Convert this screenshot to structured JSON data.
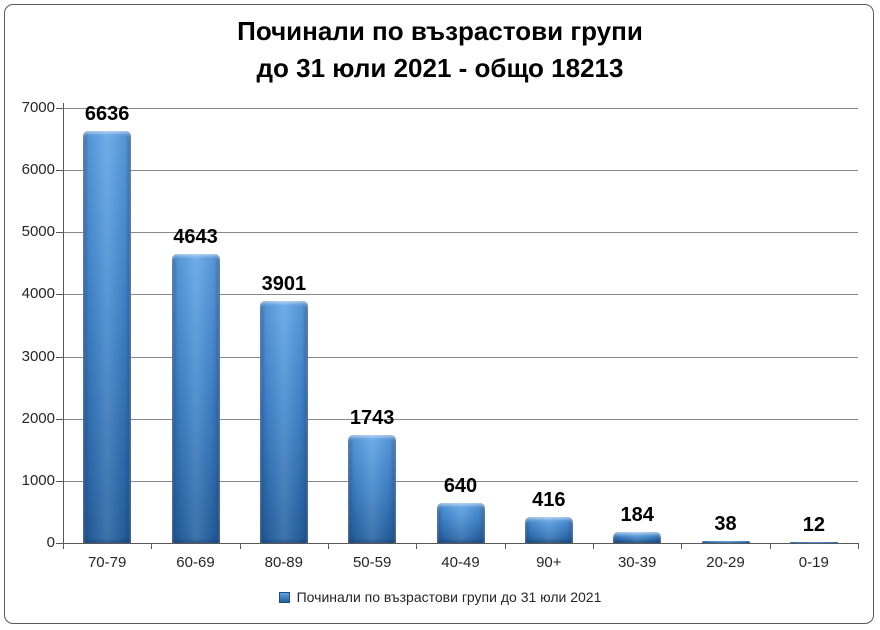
{
  "chart_data": {
    "type": "bar",
    "title": "Починали по възрастови групи до 31 юли 2021 - общо 18213",
    "title_line1": "Починали по възрастови групи",
    "title_line2": "до 31 юли 2021 - общо 18213",
    "total": 18213,
    "categories": [
      "70-79",
      "60-69",
      "80-89",
      "50-59",
      "40-49",
      "90+",
      "30-39",
      "20-29",
      "0-19"
    ],
    "values": [
      6636,
      4643,
      3901,
      1743,
      640,
      416,
      184,
      38,
      12
    ],
    "xlabel": "",
    "ylabel": "",
    "ylim": [
      0,
      7000
    ],
    "y_ticks": [
      0,
      1000,
      2000,
      3000,
      4000,
      5000,
      6000,
      7000
    ],
    "grid": true,
    "legend": {
      "label": "Починали по възрастови групи до 31 юли 2021",
      "position": "bottom"
    },
    "colors": {
      "bar_top": "#5da2e6",
      "bar_mid": "#3f86cd",
      "bar_bottom": "#245f9f",
      "bar_edge_shade": "rgba(14,42,82,0.45)",
      "legend_marker": "#3f86cd",
      "gridline": "#898989",
      "axis": "#595959",
      "tick_text": "#262626",
      "data_label": "#000000",
      "background": "#ffffff",
      "border": "#595959"
    }
  }
}
